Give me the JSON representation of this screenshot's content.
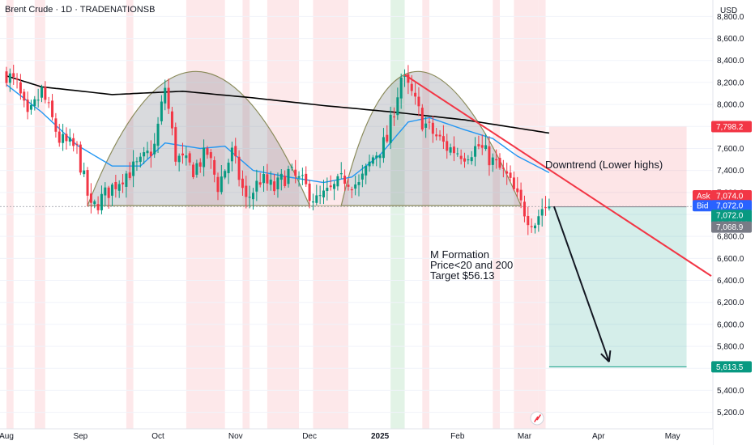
{
  "header": {
    "symbol": "Brent Crude",
    "interval": "1D",
    "broker": "TRADENATIONSB",
    "title": "Brent Crude · 1D · TRADENATIONSB",
    "currency": "USD"
  },
  "annotations": {
    "downtrend": "Downtrend (Lower highs)",
    "m_formation": [
      "M Formation",
      "Price<20 and 200",
      "Target $56.13"
    ]
  },
  "price_labels": [
    {
      "name": "target-high",
      "value": 7798.2,
      "text": "7,798.2",
      "color": "#f23645"
    },
    {
      "name": "ask",
      "tag": "Ask",
      "value": 7074.0,
      "text": "7,074.0",
      "color": "#f23645"
    },
    {
      "name": "bid",
      "tag": "Bid",
      "value": 7072.0,
      "text": "7,072.0",
      "color": "#2962ff"
    },
    {
      "name": "last",
      "value": 7072.0,
      "text": "7,072.0",
      "sub": "09:37:44",
      "color": "#089981"
    },
    {
      "name": "entry",
      "value": 7068.9,
      "text": "7,068.9",
      "color": "#787b86"
    },
    {
      "name": "target-low",
      "value": 5613.5,
      "text": "5,613.5",
      "color": "#089981"
    }
  ],
  "chart_data": {
    "type": "candlestick",
    "title": "Brent Crude · 1D · TRADENATIONSB",
    "xlabel": "",
    "ylabel": "",
    "y_ticks": [
      5200,
      5400,
      5600,
      5800,
      6000,
      6200,
      6400,
      6600,
      6800,
      7000,
      7200,
      7400,
      7600,
      7800,
      8000,
      8200,
      8400,
      8600,
      8800
    ],
    "y_tick_labels": [
      "5,200.0",
      "5,400.0",
      "5,600.0",
      "5,800.0",
      "6,000.0",
      "6,200.0",
      "6,400.0",
      "6,600.0",
      "6,800.0",
      "7,000.0",
      "7,200.0",
      "7,400.0",
      "7,600.0",
      "7,800.0",
      "8,000.0",
      "8,200.0",
      "8,400.0",
      "8,600.0",
      "8,800.0"
    ],
    "ylim": [
      5050,
      8950
    ],
    "x_tick_labels": [
      "Aug",
      "Sep",
      "Oct",
      "Nov",
      "Dec",
      "2025",
      "Feb",
      "Mar",
      "Apr",
      "May"
    ],
    "x_tick_index": [
      0,
      21,
      43,
      65,
      86,
      106,
      128,
      147,
      168,
      189
    ],
    "total_bars": 200,
    "close_anchors": [
      [
        0,
        8280
      ],
      [
        3,
        8170
      ],
      [
        6,
        7860
      ],
      [
        10,
        8120
      ],
      [
        15,
        7680
      ],
      [
        20,
        7590
      ],
      [
        24,
        7040
      ],
      [
        28,
        7180
      ],
      [
        33,
        7350
      ],
      [
        38,
        7460
      ],
      [
        42,
        7620
      ],
      [
        45,
        8160
      ],
      [
        48,
        7530
      ],
      [
        53,
        7410
      ],
      [
        57,
        7560
      ],
      [
        60,
        7260
      ],
      [
        64,
        7560
      ],
      [
        68,
        7120
      ],
      [
        72,
        7320
      ],
      [
        76,
        7230
      ],
      [
        80,
        7380
      ],
      [
        84,
        7280
      ],
      [
        88,
        7120
      ],
      [
        92,
        7210
      ],
      [
        96,
        7330
      ],
      [
        100,
        7260
      ],
      [
        104,
        7520
      ],
      [
        108,
        7680
      ],
      [
        112,
        8250
      ],
      [
        115,
        8090
      ],
      [
        118,
        7850
      ],
      [
        121,
        7740
      ],
      [
        125,
        7610
      ],
      [
        130,
        7550
      ],
      [
        134,
        7620
      ],
      [
        138,
        7480
      ],
      [
        142,
        7340
      ],
      [
        145,
        7140
      ],
      [
        148,
        6980
      ],
      [
        150,
        6930
      ],
      [
        152,
        7060
      ],
      [
        154,
        7072
      ]
    ],
    "ma200_anchors": [
      [
        0,
        8260
      ],
      [
        10,
        8160
      ],
      [
        30,
        8090
      ],
      [
        50,
        8120
      ],
      [
        70,
        8060
      ],
      [
        90,
        7990
      ],
      [
        110,
        7930
      ],
      [
        130,
        7860
      ],
      [
        154,
        7740
      ]
    ],
    "ma20_anchors": [
      [
        0,
        8180
      ],
      [
        10,
        7930
      ],
      [
        20,
        7630
      ],
      [
        30,
        7440
      ],
      [
        38,
        7440
      ],
      [
        45,
        7650
      ],
      [
        55,
        7600
      ],
      [
        62,
        7620
      ],
      [
        70,
        7400
      ],
      [
        80,
        7340
      ],
      [
        90,
        7290
      ],
      [
        98,
        7340
      ],
      [
        106,
        7540
      ],
      [
        114,
        7840
      ],
      [
        120,
        7880
      ],
      [
        130,
        7770
      ],
      [
        138,
        7690
      ],
      [
        145,
        7530
      ],
      [
        154,
        7380
      ]
    ],
    "m_formation_arcs": [
      [
        [
          23,
          7080
        ],
        [
          53,
          8300
        ],
        [
          86,
          7080
        ]
      ],
      [
        [
          95,
          7080
        ],
        [
          113,
          8300
        ],
        [
          146,
          7080
        ]
      ]
    ],
    "neckline": 7080,
    "trendline": [
      [
        113,
        8270
      ],
      [
        200,
        6440
      ]
    ],
    "projection_arrow": [
      [
        154,
        7072
      ],
      [
        171,
        5660
      ]
    ],
    "position": {
      "start": 154,
      "end": 193,
      "entry": 7068.9,
      "stop": 7798.2,
      "target": 5613.5
    },
    "last_price": 7072.0
  },
  "colors": {
    "up": "#089981",
    "down": "#f23645",
    "ma20": "#2196f3",
    "ma200": "#000000",
    "trendline": "#f23645",
    "grid": "#f0f3fa"
  }
}
